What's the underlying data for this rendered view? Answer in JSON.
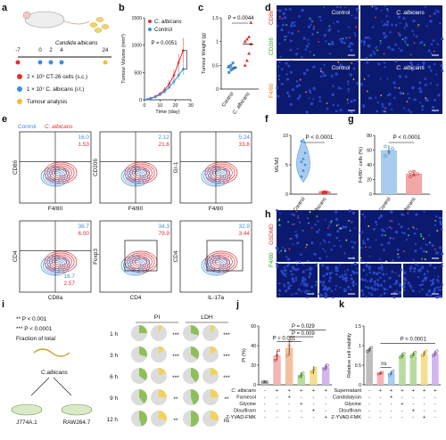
{
  "panel_letters": [
    "a",
    "b",
    "c",
    "d",
    "e",
    "f",
    "g",
    "h",
    "i",
    "j",
    "k"
  ],
  "colors": {
    "control": "#3d8fdc",
    "albicans": "#e03030",
    "pink": "#f2a6a6",
    "green": "#8fbf5a",
    "yellow": "#f2d35a",
    "purple": "#b085d8",
    "grey": "#9a9a9a",
    "lightblue": "#a9cbee",
    "micro_bg": "#0b1a6e"
  },
  "panel_a": {
    "organism": "Candida albicans",
    "timeline_ticks": [
      "-7",
      "0",
      "2",
      "4",
      "24"
    ],
    "legend": [
      {
        "label": "2 × 10⁶ CT-26 cells (s.c.)",
        "color": "#e03030"
      },
      {
        "label": "1 × 10⁷ C. albicans (i.t.)",
        "color": "#3d8fdc"
      },
      {
        "label": "Tumour analysis",
        "color": "#f2c030"
      }
    ]
  },
  "panel_d": {
    "labels_top": [
      "Control",
      "C. albicans"
    ],
    "ylabel_top_green": "CD206",
    "ylabel_top_red": "CD86",
    "ylabel_bottom": "F4/80"
  },
  "panel_e_labels": {
    "legend_control": "Control",
    "legend_albicans": "C. albicans"
  },
  "panel_h": {
    "ylabel_green": "F4/80",
    "ylabel_red": "GSDMD"
  },
  "panel_i": {
    "stats": [
      "** P < 0.001",
      "*** P < 0.0001",
      "Fraction of total"
    ],
    "organism": "C.albicans",
    "cells": [
      "J774A.1",
      "RAW264.7"
    ],
    "col_headers": [
      "PI",
      "LDH"
    ],
    "rows": [
      {
        "time": "1 h",
        "pi_sig": "***",
        "ldh_sig": "***",
        "pi": [
          0.25,
          0.08
        ],
        "ldh": [
          0.3,
          0.1
        ]
      },
      {
        "time": "3 h",
        "pi_sig": "***",
        "ldh_sig": "***",
        "pi": [
          0.3,
          0.12
        ],
        "ldh": [
          0.35,
          0.15
        ]
      },
      {
        "time": "6 h",
        "pi_sig": "***",
        "ldh_sig": "***",
        "pi": [
          0.35,
          0.18
        ],
        "ldh": [
          0.4,
          0.2
        ]
      },
      {
        "time": "9 h",
        "pi_sig": "**",
        "ldh_sig": "**",
        "pi": [
          0.4,
          0.25
        ],
        "ldh": [
          0.45,
          0.25
        ]
      },
      {
        "time": "12 h",
        "pi_sig": "**",
        "ldh_sig": "ns",
        "pi": [
          0.45,
          0.3
        ],
        "ldh": [
          0.5,
          0.3
        ]
      }
    ]
  },
  "chart_data": [
    {
      "panel": "b",
      "type": "line",
      "x": [
        0,
        2,
        4,
        7,
        10,
        13,
        16,
        19,
        22,
        25
      ],
      "series": [
        {
          "name": "C. albicans",
          "values": [
            0,
            10,
            30,
            60,
            110,
            180,
            290,
            450,
            680,
            900
          ],
          "err": [
            0,
            5,
            10,
            20,
            30,
            50,
            70,
            100,
            160,
            230
          ]
        },
        {
          "name": "Control",
          "values": [
            0,
            10,
            25,
            50,
            90,
            150,
            230,
            330,
            450,
            560
          ],
          "err": [
            0,
            5,
            8,
            15,
            20,
            30,
            45,
            60,
            80,
            100
          ]
        }
      ],
      "xlabel": "Time (day)",
      "ylabel": "Tumour Volume (mm³)",
      "xlim": [
        0,
        30
      ],
      "ylim": [
        0,
        1500
      ],
      "xticks": [
        0,
        10,
        20,
        30
      ],
      "yticks": [
        0,
        500,
        1000,
        1500
      ],
      "annotation": "P = 0.0051"
    },
    {
      "panel": "c",
      "type": "scatter",
      "categories": [
        "Control",
        "C. albicans"
      ],
      "points": [
        [
          0.35,
          0.4,
          0.42,
          0.45,
          0.48,
          0.5,
          0.55
        ],
        [
          0.5,
          0.6,
          0.75,
          0.95,
          1.0,
          1.05,
          1.1,
          1.4
        ]
      ],
      "means": [
        0.45,
        0.95
      ],
      "ylabel": "Tumour Weight (g)",
      "ylim": [
        0,
        1.5
      ],
      "yticks": [
        0.0,
        0.5,
        1.0,
        1.5
      ],
      "annotation": "P = 0.0044"
    },
    {
      "panel": "f",
      "type": "violin",
      "categories": [
        "Control",
        "C. albicans"
      ],
      "points": [
        [
          3,
          4,
          5,
          5.5,
          6,
          7,
          9
        ],
        [
          0.1,
          0.2,
          0.3,
          0.3,
          0.4
        ]
      ],
      "ylabel": "M1/M2",
      "ylim": [
        0,
        10
      ],
      "yticks": [
        0,
        5,
        10
      ],
      "annotation": "P < 0.0001"
    },
    {
      "panel": "g",
      "type": "bar",
      "categories": [
        "Control",
        "C. albicans"
      ],
      "values": [
        60,
        28
      ],
      "err": [
        6,
        3
      ],
      "points": [
        [
          52,
          58,
          62,
          65
        ],
        [
          24,
          26,
          28,
          30,
          31
        ]
      ],
      "ylabel": "F4/80⁺ cells (%)",
      "ylim": [
        0,
        80
      ],
      "yticks": [
        0,
        20,
        40,
        60,
        80
      ],
      "annotation": "P < 0.0001"
    },
    {
      "panel": "e",
      "type": "flow_scatter",
      "plots": [
        {
          "xlabel": "F4/80",
          "ylabel": "CD86",
          "q_control": "16.0",
          "q_albicans": "1.53",
          "q_albicans2": ""
        },
        {
          "xlabel": "F4/80",
          "ylabel": "CD206",
          "q_control": "2.12",
          "q_albicans": "21.6"
        },
        {
          "xlabel": "F4/80",
          "ylabel": "Gr-1",
          "q_control": "5.24",
          "q_albicans": "33.8"
        },
        {
          "xlabel": "CD8a",
          "ylabel": "CD4",
          "q_control": "36.7",
          "q_albicans": "6.00",
          "q_control2": "16.7",
          "q_albicans2": "2.57"
        },
        {
          "xlabel": "CD4",
          "ylabel": "Foxp3",
          "q_control": "34.3",
          "q_albicans": "79.9"
        },
        {
          "xlabel": "IL-17a",
          "ylabel": "CD4",
          "q_control": "32.9",
          "q_albicans": "3.44"
        }
      ]
    },
    {
      "panel": "j",
      "type": "bar",
      "categories": [
        "1",
        "2",
        "3",
        "4",
        "5",
        "6"
      ],
      "values": [
        3,
        30,
        38,
        10,
        15,
        18
      ],
      "err": [
        1,
        5,
        8,
        3,
        4,
        3
      ],
      "points": [
        [
          3,
          3,
          3
        ],
        [
          25,
          30,
          35
        ],
        [
          30,
          40,
          45
        ],
        [
          8,
          10,
          12
        ],
        [
          13,
          15,
          17
        ],
        [
          16,
          18,
          20
        ]
      ],
      "ylabel": "PI (%)",
      "ylim": [
        0,
        60
      ],
      "yticks": [
        0,
        20,
        40,
        60
      ],
      "annotations": [
        "P = 0.001",
        "P = 0.029",
        "P = 0.009"
      ],
      "row_labels": [
        "C. albicans",
        "Farnesol",
        "Glycine",
        "Disulfiram",
        "Z-YVAD-FMK"
      ],
      "matrix": [
        [
          "-",
          "+",
          "+",
          "+",
          "+",
          "+"
        ],
        [
          "-",
          "-",
          "+",
          "-",
          "-",
          "-"
        ],
        [
          "-",
          "-",
          "-",
          "+",
          "-",
          "-"
        ],
        [
          "-",
          "-",
          "-",
          "-",
          "+",
          "-"
        ],
        [
          "-",
          "-",
          "-",
          "-",
          "-",
          "+"
        ]
      ]
    },
    {
      "panel": "k",
      "type": "bar",
      "categories": [
        "1",
        "2",
        "3",
        "4",
        "5",
        "6",
        "7"
      ],
      "values": [
        0.9,
        0.3,
        0.3,
        0.75,
        0.78,
        0.8,
        0.8
      ],
      "err": [
        0.05,
        0.03,
        0.05,
        0.06,
        0.05,
        0.06,
        0.06
      ],
      "points": [
        [
          0.85,
          0.9,
          0.95
        ],
        [
          0.28,
          0.3,
          0.32
        ],
        [
          0.25,
          0.3,
          0.35
        ],
        [
          0.7,
          0.75,
          0.8
        ],
        [
          0.72,
          0.78,
          0.83
        ],
        [
          0.74,
          0.8,
          0.86
        ],
        [
          0.74,
          0.8,
          0.86
        ]
      ],
      "ylabel": "Relative cell viability",
      "ylim": [
        0,
        1.5
      ],
      "yticks": [
        0.0,
        0.5,
        1.0,
        1.5
      ],
      "annotations": [
        "P < 0.0001",
        "ns"
      ],
      "row_labels": [
        "Supernatant",
        "Candidalysin",
        "Glycine",
        "Disulfiram",
        "Z-YVAD-FMK"
      ],
      "matrix": [
        [
          "-",
          "+",
          "+",
          "+",
          "+",
          "+",
          "+"
        ],
        [
          "-",
          "-",
          "+",
          "-",
          "-",
          "-",
          "-"
        ],
        [
          "-",
          "-",
          "-",
          "+",
          "-",
          "-",
          "-"
        ],
        [
          "-",
          "-",
          "-",
          "-",
          "+",
          "-",
          "-"
        ],
        [
          "-",
          "-",
          "-",
          "-",
          "-",
          "+",
          "-"
        ]
      ]
    }
  ]
}
